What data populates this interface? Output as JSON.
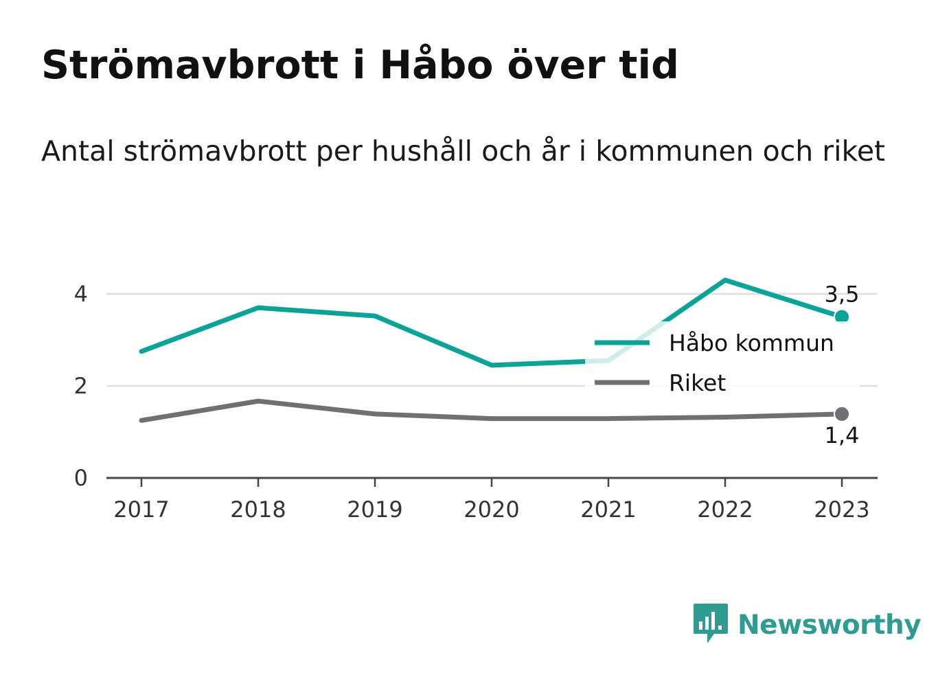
{
  "title": "Strömavbrott i Håbo över tid",
  "subtitle": "Antal strömavbrott per hushåll och år i kommunen och riket",
  "brand": {
    "name": "Newsworthy"
  },
  "colors": {
    "habo": "#0aa398",
    "riket": "#707074",
    "grid": "#dedede",
    "axis": "#444444"
  },
  "chart_data": {
    "type": "line",
    "x": [
      "2017",
      "2018",
      "2019",
      "2020",
      "2021",
      "2022",
      "2023"
    ],
    "ylim": [
      0,
      4.6
    ],
    "yticks": [
      "0",
      "2",
      "4"
    ],
    "legend_position": "right",
    "series": [
      {
        "name": "Håbo kommun",
        "values": [
          2.75,
          3.7,
          3.52,
          2.45,
          2.55,
          4.3,
          3.5
        ],
        "end_label": "3,5"
      },
      {
        "name": "Riket",
        "values": [
          1.25,
          1.67,
          1.39,
          1.29,
          1.29,
          1.32,
          1.39
        ],
        "end_label": "1,4"
      }
    ]
  }
}
